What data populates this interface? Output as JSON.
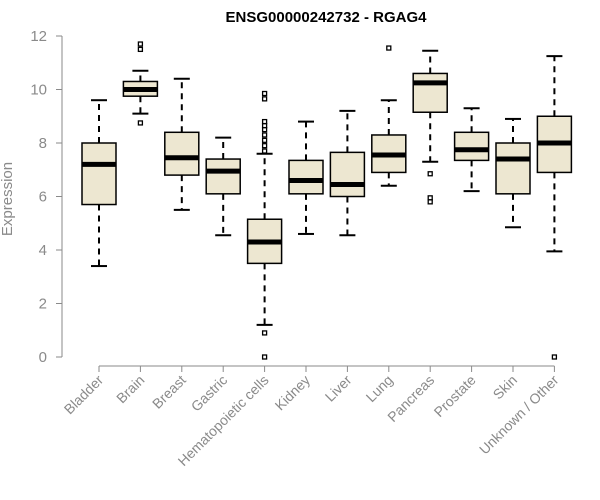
{
  "chart_data": {
    "type": "boxplot",
    "title": "ENSG00000242732 - RGAG4",
    "xlabel": "",
    "ylabel": "Expression",
    "ylim": [
      0,
      12
    ],
    "yticks": [
      0,
      2,
      4,
      6,
      8,
      10,
      12
    ],
    "box_fill": "#ede7d1",
    "line_color": "#000000",
    "axis_color": "#8a8a8a",
    "categories": [
      "Bladder",
      "Brain",
      "Breast",
      "Gastric",
      "Hematopoietic cells",
      "Kidney",
      "Liver",
      "Lung",
      "Pancreas",
      "Prostate",
      "Skin",
      "Unknown / Other"
    ],
    "boxes": [
      {
        "whisker_low": 3.4,
        "q1": 5.7,
        "median": 7.2,
        "q3": 8.0,
        "whisker_high": 9.6,
        "outliers": []
      },
      {
        "whisker_low": 9.1,
        "q1": 9.75,
        "median": 10.0,
        "q3": 10.3,
        "whisker_high": 10.7,
        "outliers": [
          8.75,
          11.5,
          11.7
        ]
      },
      {
        "whisker_low": 5.5,
        "q1": 6.8,
        "median": 7.45,
        "q3": 8.4,
        "whisker_high": 10.4,
        "outliers": []
      },
      {
        "whisker_low": 4.55,
        "q1": 6.1,
        "median": 6.95,
        "q3": 7.4,
        "whisker_high": 8.2,
        "outliers": []
      },
      {
        "whisker_low": 1.2,
        "q1": 3.5,
        "median": 4.3,
        "q3": 5.15,
        "whisker_high": 7.6,
        "outliers": [
          0.0,
          0.9,
          7.7,
          7.9,
          8.1,
          8.3,
          8.5,
          8.65,
          8.8,
          9.65,
          9.85
        ]
      },
      {
        "whisker_low": 4.6,
        "q1": 6.1,
        "median": 6.6,
        "q3": 7.35,
        "whisker_high": 8.8,
        "outliers": []
      },
      {
        "whisker_low": 4.55,
        "q1": 6.0,
        "median": 6.45,
        "q3": 7.65,
        "whisker_high": 9.2,
        "outliers": []
      },
      {
        "whisker_low": 6.4,
        "q1": 6.9,
        "median": 7.55,
        "q3": 8.3,
        "whisker_high": 9.6,
        "outliers": [
          11.55
        ]
      },
      {
        "whisker_low": 7.3,
        "q1": 9.15,
        "median": 10.25,
        "q3": 10.6,
        "whisker_high": 11.45,
        "outliers": [
          5.8,
          5.95,
          6.85
        ]
      },
      {
        "whisker_low": 6.2,
        "q1": 7.35,
        "median": 7.75,
        "q3": 8.4,
        "whisker_high": 9.3,
        "outliers": []
      },
      {
        "whisker_low": 4.85,
        "q1": 6.1,
        "median": 7.4,
        "q3": 8.0,
        "whisker_high": 8.9,
        "outliers": []
      },
      {
        "whisker_low": 3.95,
        "q1": 6.9,
        "median": 8.0,
        "q3": 9.0,
        "whisker_high": 11.25,
        "outliers": [
          0.0
        ]
      }
    ]
  }
}
